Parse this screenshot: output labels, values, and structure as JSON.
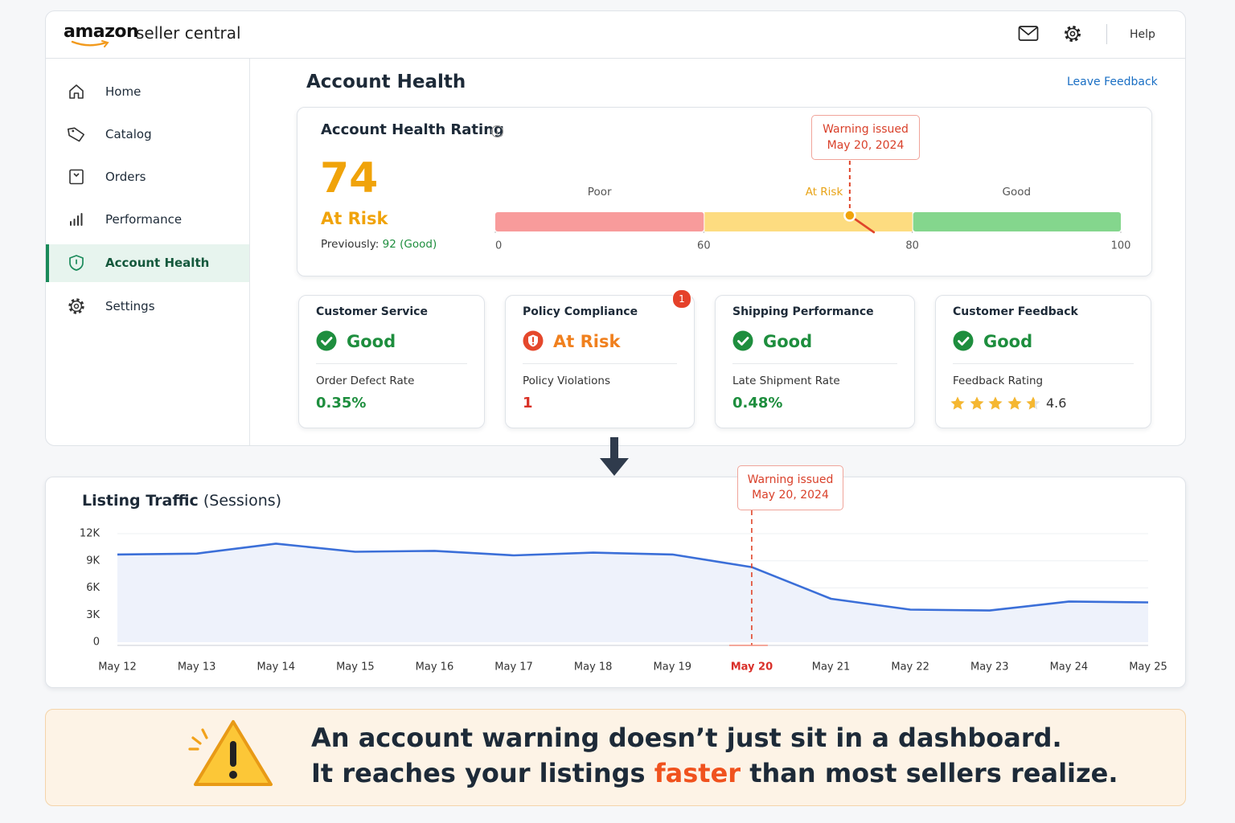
{
  "header": {
    "brand": "amazon",
    "product": "seller central",
    "help": "Help"
  },
  "nav": {
    "items": [
      "Home",
      "Catalog",
      "Orders",
      "Performance",
      "Account Health",
      "Settings"
    ],
    "active": 4
  },
  "page": {
    "title": "Account Health",
    "feedback_link": "Leave Feedback"
  },
  "rating": {
    "title": "Account Health Rating",
    "score": 74,
    "status": "At Risk",
    "previous_label": "Previously:",
    "previous_value": "92 (Good)",
    "gauge": {
      "zones": [
        {
          "label": "Poor",
          "color": "#f89b9b"
        },
        {
          "label": "At Risk",
          "color": "#fddc80"
        },
        {
          "label": "Good",
          "color": "#84d68d"
        }
      ],
      "xlim": [
        0,
        100
      ],
      "xticks": [
        0,
        60,
        80,
        100
      ]
    },
    "callout": [
      "Warning issued",
      "May 20, 2024"
    ]
  },
  "metrics": [
    {
      "title": "Customer Service",
      "status": "Good",
      "metric": "Order Defect Rate",
      "value": "0.35%"
    },
    {
      "title": "Policy Compliance",
      "status": "At Risk",
      "metric": "Policy Violations",
      "value": "1",
      "badge": "1"
    },
    {
      "title": "Shipping Performance",
      "status": "Good",
      "metric": "Late Shipment Rate",
      "value": "0.48%"
    },
    {
      "title": "Customer Feedback",
      "status": "Good",
      "metric": "Feedback Rating",
      "value": 4.6
    }
  ],
  "chart_data": {
    "type": "line",
    "title": "Listing Traffic",
    "subtitle": "(Sessions)",
    "categories": [
      "May 12",
      "May 13",
      "May 14",
      "May 15",
      "May 16",
      "May 17",
      "May 18",
      "May 19",
      "May 20",
      "May 21",
      "May 22",
      "May 23",
      "May 24",
      "May 25"
    ],
    "values": [
      9700,
      9800,
      10900,
      10000,
      10100,
      9600,
      9900,
      9700,
      8300,
      4800,
      3600,
      3500,
      4500,
      4400
    ],
    "color": "#3b6fd8",
    "ylim": [
      0,
      12000
    ],
    "yticks": [
      0,
      {
        "value": 3000,
        "label": "3K"
      },
      {
        "value": 6000,
        "label": "6K"
      },
      {
        "value": 9000,
        "label": "9K"
      },
      {
        "value": 12000,
        "label": "12K"
      }
    ],
    "grid": true,
    "annotation": {
      "index": 8,
      "lines": [
        "Warning issued",
        "May 20, 2024"
      ]
    }
  },
  "banner": {
    "line1": "An account warning doesn’t just sit in a dashboard.",
    "line2": [
      "It reaches your listings ",
      "faster",
      " than most sellers realize."
    ]
  }
}
